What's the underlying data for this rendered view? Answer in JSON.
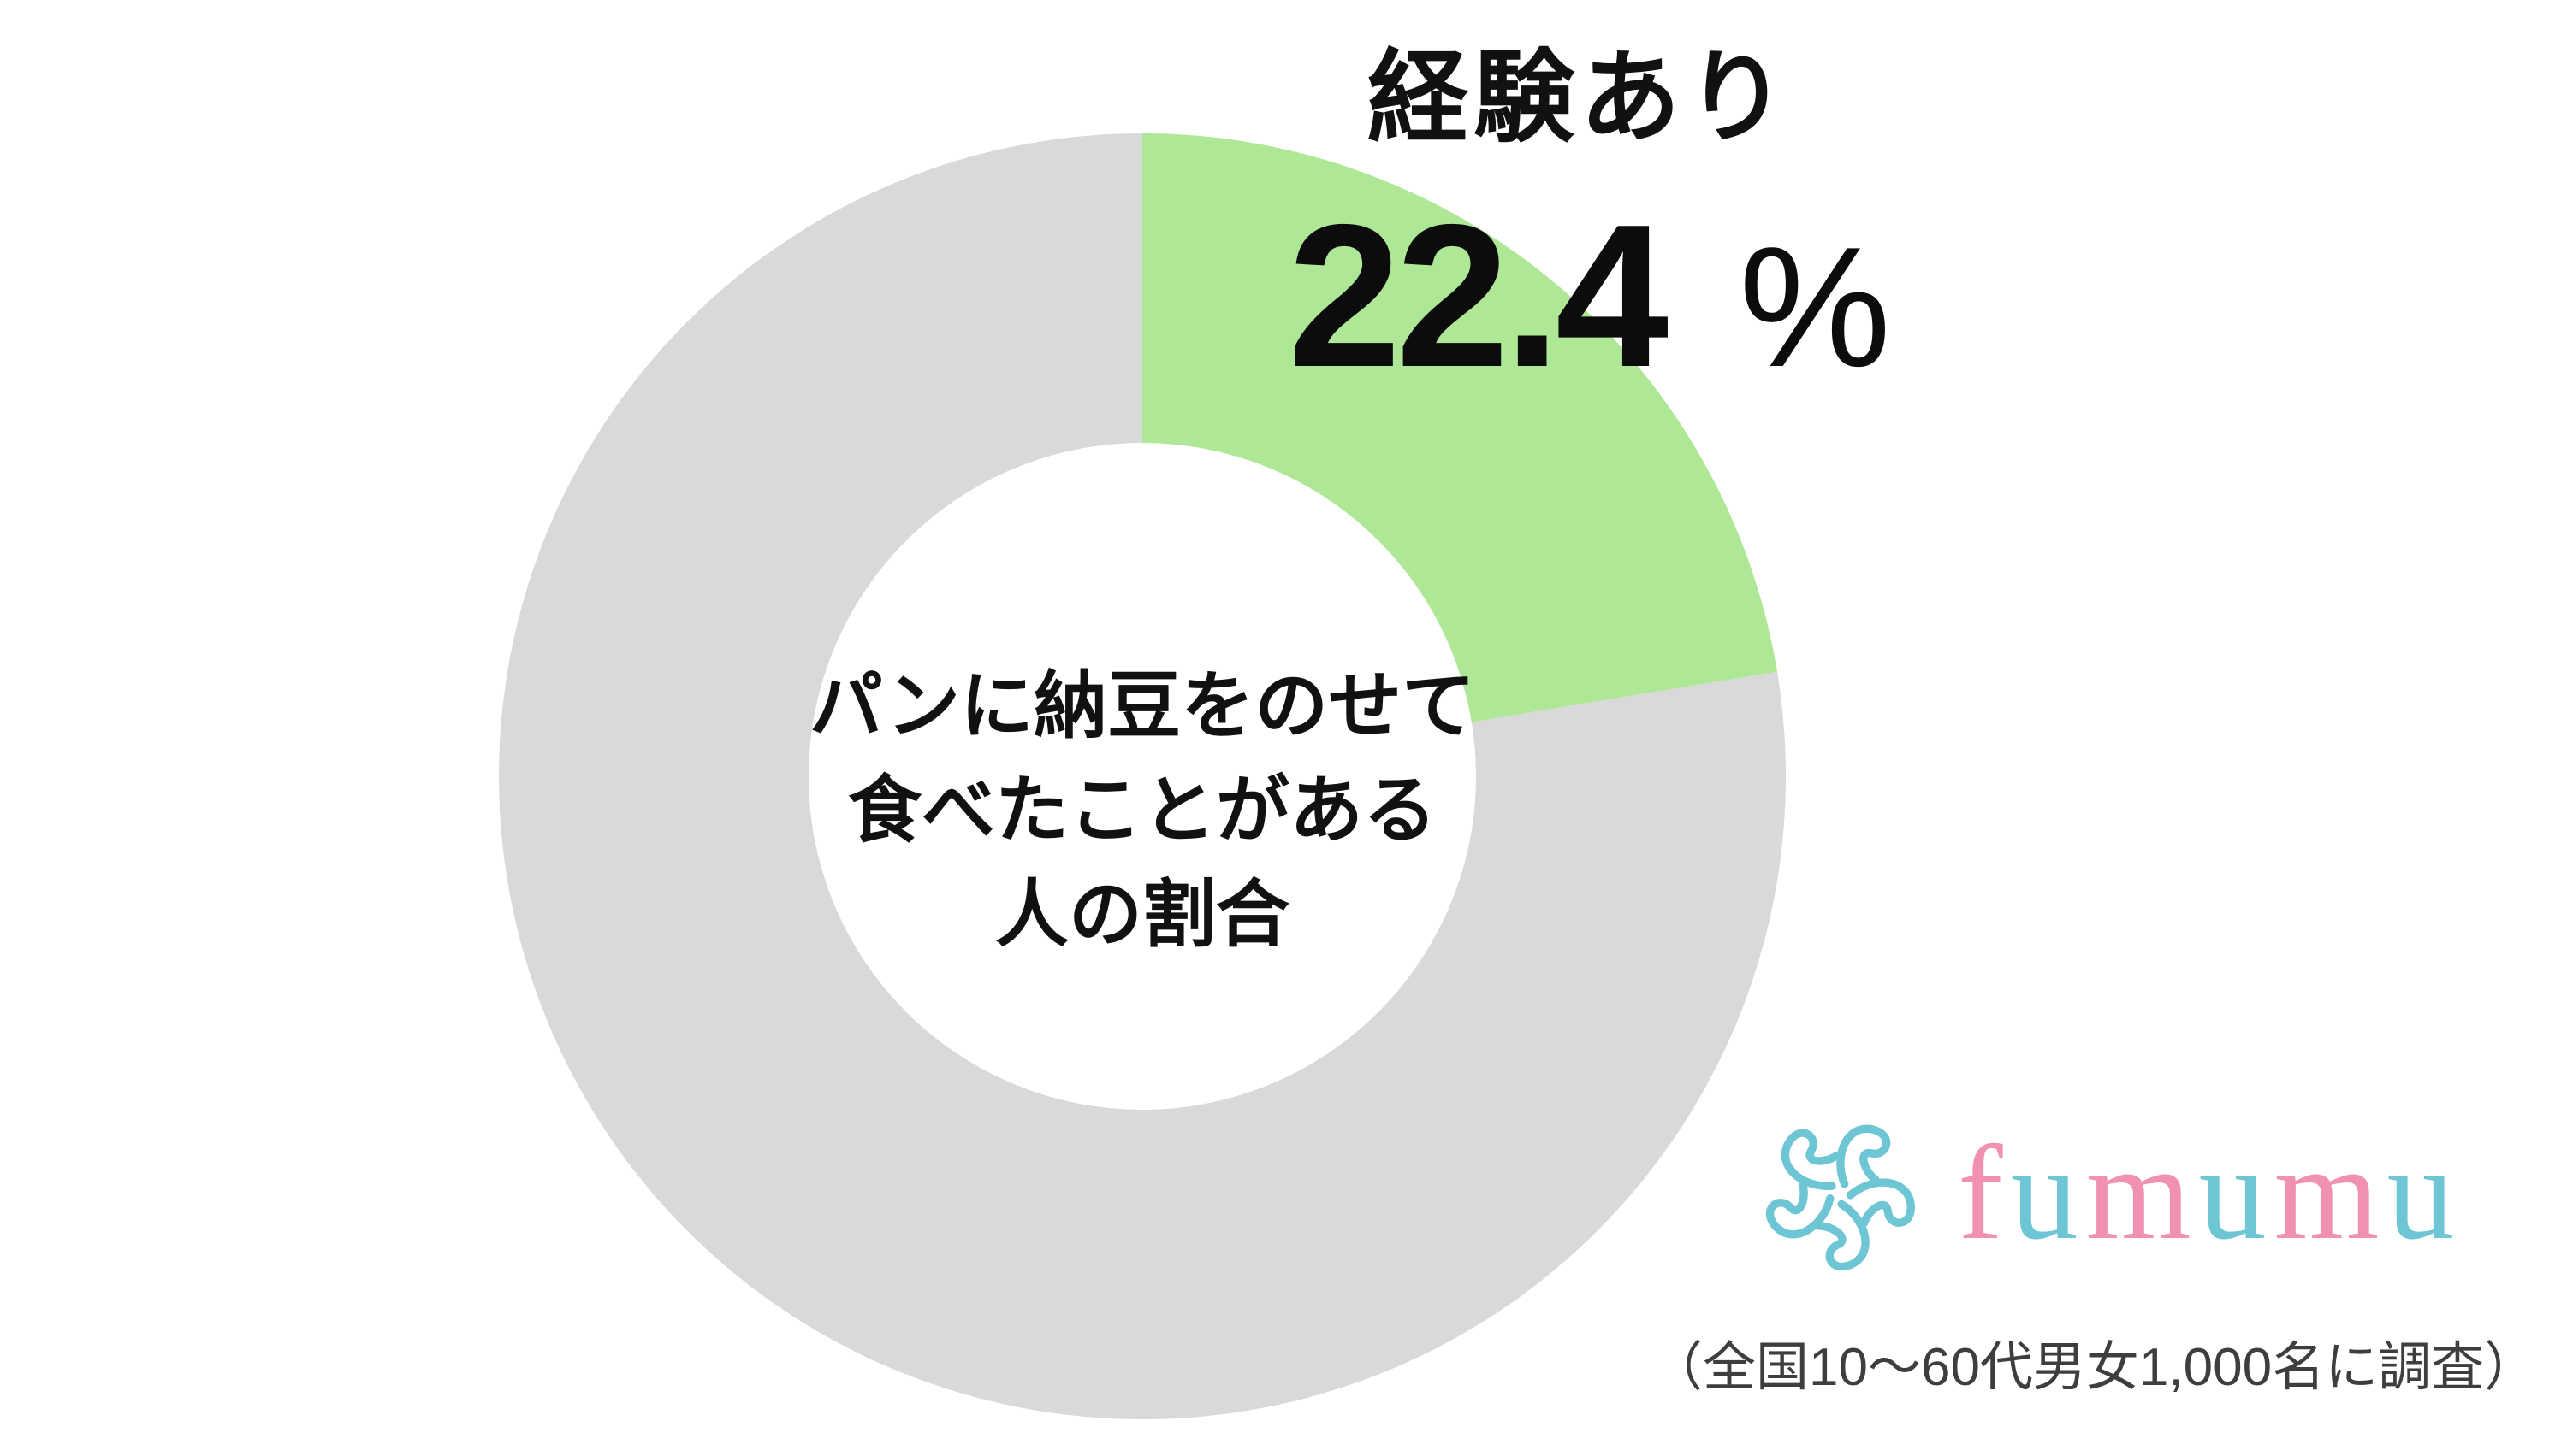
{
  "chart_data": {
    "type": "pie",
    "subtype": "donut",
    "title": "経験あり",
    "value_label": "22.4",
    "unit": "%",
    "center_label_lines": [
      "パンに納豆をのせて",
      "食べたことがある",
      "人の割合"
    ],
    "segments": [
      {
        "name": "経験あり",
        "value": 22.4,
        "color": "#aee795"
      },
      {
        "name": "",
        "value": 77.6,
        "color": "#d9d9d9"
      }
    ],
    "start_angle_deg": 0,
    "direction": "clockwise",
    "legend": "none",
    "background": "#ffffff"
  },
  "logo": {
    "name": "fumumu",
    "icon": "swirl-flower-icon",
    "icon_color": "#6ec6d5",
    "letters": [
      {
        "char": "f",
        "color": "#f090b3"
      },
      {
        "char": "u",
        "color": "#6ec6d5"
      },
      {
        "char": "m",
        "color": "#f090b3"
      },
      {
        "char": "u",
        "color": "#6ec6d5"
      },
      {
        "char": "m",
        "color": "#f090b3"
      },
      {
        "char": "u",
        "color": "#6ec6d5"
      }
    ]
  },
  "footer": {
    "caption": "（全国10〜60代男女1,000名に調査）"
  }
}
